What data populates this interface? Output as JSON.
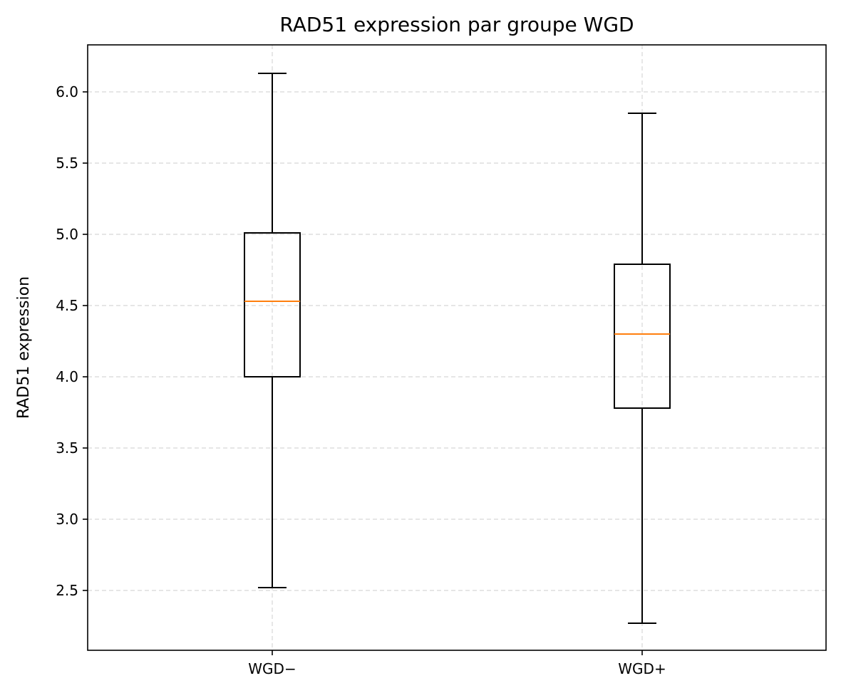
{
  "chart_data": {
    "type": "boxplot",
    "title": "RAD51 expression par groupe WGD",
    "xlabel": "",
    "ylabel": "RAD51 expression",
    "categories": [
      "WGD−",
      "WGD+"
    ],
    "boxes": [
      {
        "category": "WGD−",
        "whisker_low": 2.52,
        "q1": 4.0,
        "median": 4.53,
        "q3": 5.01,
        "whisker_high": 6.13
      },
      {
        "category": "WGD+",
        "whisker_low": 2.27,
        "q1": 3.78,
        "median": 4.3,
        "q3": 4.79,
        "whisker_high": 5.85
      }
    ],
    "ylim": [
      2.08,
      6.33
    ],
    "yticks": [
      2.5,
      3.0,
      3.5,
      4.0,
      4.5,
      5.0,
      5.5,
      6.0
    ],
    "ytick_labels": [
      "2.5",
      "3.0",
      "3.5",
      "4.0",
      "4.5",
      "5.0",
      "5.5",
      "6.0"
    ],
    "grid": true,
    "grid_style": "dashed",
    "colors": {
      "box": "#000000",
      "median": "#ff7f0e",
      "grid": "#dddddd"
    }
  }
}
